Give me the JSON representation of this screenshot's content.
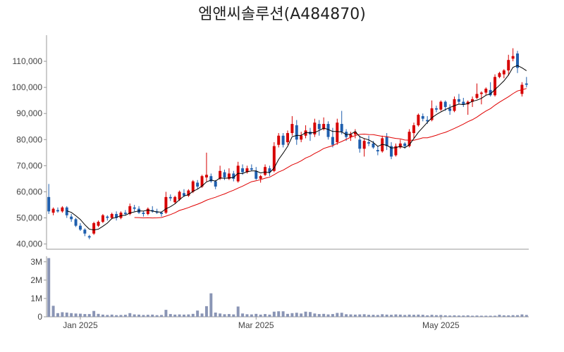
{
  "title": "엠앤씨솔루션(A484870)",
  "chart_data": {
    "type": "candlestick",
    "price_axis": {
      "ticks": [
        40000,
        50000,
        60000,
        70000,
        80000,
        90000,
        100000,
        110000
      ],
      "tick_labels": [
        "40,000",
        "50,000",
        "60,000",
        "70,000",
        "80,000",
        "90,000",
        "100,000",
        "110,000"
      ],
      "range": [
        38000,
        120000
      ]
    },
    "volume_axis": {
      "ticks": [
        0,
        1000000,
        2000000,
        3000000
      ],
      "tick_labels": [
        "0",
        "1M",
        "2M",
        "3M"
      ],
      "range": [
        0,
        3300000
      ]
    },
    "x_tick_labels": [
      {
        "index": 7,
        "label": "Jan 2025"
      },
      {
        "index": 46,
        "label": "Mar 2025"
      },
      {
        "index": 87,
        "label": "May 2025"
      }
    ],
    "colors": {
      "up": "#d60000",
      "down": "#1f5fae",
      "ma_short": "#000000",
      "ma_long": "#e00000",
      "volume": "#8a95b5"
    },
    "candles": [
      [
        58000,
        63000,
        51500,
        52500
      ],
      [
        52000,
        54000,
        51000,
        53500
      ],
      [
        53000,
        54000,
        52000,
        52500
      ],
      [
        52500,
        54500,
        52000,
        54000
      ],
      [
        54000,
        54500,
        50000,
        51000
      ],
      [
        50500,
        51500,
        48500,
        49500
      ],
      [
        49500,
        50000,
        46500,
        47000
      ],
      [
        47000,
        48000,
        45000,
        45500
      ],
      [
        45500,
        46000,
        43000,
        44000
      ],
      [
        43000,
        43500,
        41800,
        42500
      ],
      [
        44000,
        48500,
        43500,
        48000
      ],
      [
        47000,
        49000,
        46500,
        48500
      ],
      [
        48500,
        51500,
        48000,
        51000
      ],
      [
        50500,
        51000,
        49000,
        50000
      ],
      [
        50000,
        52000,
        49500,
        51500
      ],
      [
        51500,
        52500,
        49000,
        50000
      ],
      [
        50000,
        52500,
        49500,
        52000
      ],
      [
        52000,
        53000,
        51000,
        51500
      ],
      [
        51500,
        55500,
        51000,
        54500
      ],
      [
        54000,
        55000,
        52500,
        53500
      ],
      [
        53500,
        54500,
        51500,
        52000
      ],
      [
        52000,
        52500,
        50500,
        51500
      ],
      [
        51500,
        54000,
        51000,
        53500
      ],
      [
        53000,
        54500,
        52000,
        52500
      ],
      [
        52500,
        53500,
        51500,
        52000
      ],
      [
        52000,
        52500,
        50500,
        51500
      ],
      [
        52000,
        60000,
        51500,
        58000
      ],
      [
        58000,
        59000,
        56500,
        57500
      ],
      [
        56000,
        58500,
        55500,
        58000
      ],
      [
        57000,
        60500,
        56500,
        60000
      ],
      [
        59500,
        61000,
        58000,
        58500
      ],
      [
        58500,
        61000,
        58000,
        60500
      ],
      [
        60000,
        64500,
        59500,
        64000
      ],
      [
        63500,
        64500,
        61000,
        62000
      ],
      [
        62000,
        66500,
        61500,
        66000
      ],
      [
        65500,
        75000,
        64000,
        66500
      ],
      [
        66000,
        67000,
        63500,
        64000
      ],
      [
        64000,
        64500,
        61000,
        62000
      ],
      [
        65000,
        70000,
        64500,
        68000
      ],
      [
        67500,
        68500,
        64500,
        65500
      ],
      [
        65000,
        69000,
        64500,
        67000
      ],
      [
        67000,
        68000,
        64000,
        65000
      ],
      [
        64000,
        71500,
        63500,
        70000
      ],
      [
        69000,
        70500,
        66500,
        67500
      ],
      [
        67500,
        70000,
        67000,
        69000
      ],
      [
        69000,
        70500,
        68000,
        68500
      ],
      [
        68000,
        69500,
        64500,
        65000
      ],
      [
        65000,
        66500,
        63500,
        66000
      ],
      [
        66500,
        70500,
        66000,
        69500
      ],
      [
        69000,
        70000,
        66000,
        67500
      ],
      [
        68000,
        79000,
        67500,
        77500
      ],
      [
        78000,
        82500,
        77000,
        81500
      ],
      [
        81500,
        82500,
        77000,
        78000
      ],
      [
        79000,
        83500,
        78000,
        82500
      ],
      [
        82500,
        89000,
        81500,
        86000
      ],
      [
        85500,
        87500,
        78000,
        80000
      ],
      [
        80000,
        83000,
        79000,
        81500
      ],
      [
        81500,
        85500,
        80500,
        83500
      ],
      [
        83000,
        84500,
        79500,
        82000
      ],
      [
        82000,
        88000,
        81000,
        86500
      ],
      [
        86000,
        87500,
        81500,
        84000
      ],
      [
        84000,
        88500,
        83500,
        86000
      ],
      [
        86000,
        87000,
        80000,
        81000
      ],
      [
        81000,
        84500,
        77000,
        78000
      ],
      [
        79000,
        88000,
        78000,
        86500
      ],
      [
        86000,
        91000,
        82000,
        83000
      ],
      [
        83000,
        84000,
        79500,
        81000
      ],
      [
        81000,
        83000,
        79500,
        82000
      ],
      [
        82000,
        84000,
        80500,
        83000
      ],
      [
        80000,
        81500,
        75000,
        76500
      ],
      [
        76500,
        80500,
        73500,
        79500
      ],
      [
        79000,
        81500,
        77500,
        78500
      ],
      [
        78500,
        79500,
        76500,
        77000
      ],
      [
        76000,
        77500,
        74000,
        75500
      ],
      [
        75500,
        81500,
        75000,
        80500
      ],
      [
        81000,
        82500,
        76000,
        77500
      ],
      [
        77500,
        79000,
        72500,
        73500
      ],
      [
        74000,
        78500,
        73500,
        77500
      ],
      [
        77000,
        80000,
        76500,
        78500
      ],
      [
        78500,
        79000,
        76500,
        77500
      ],
      [
        77500,
        84000,
        77000,
        83000
      ],
      [
        82500,
        86500,
        80500,
        85500
      ],
      [
        85500,
        90000,
        85000,
        89500
      ],
      [
        89000,
        90000,
        87000,
        88000
      ],
      [
        87500,
        89000,
        86000,
        87000
      ],
      [
        87500,
        95000,
        87000,
        92000
      ],
      [
        92000,
        93000,
        90500,
        91500
      ],
      [
        91500,
        95000,
        91000,
        94500
      ],
      [
        94500,
        95000,
        91000,
        92500
      ],
      [
        92000,
        93500,
        89500,
        91000
      ],
      [
        91000,
        96500,
        90500,
        95500
      ],
      [
        95500,
        97500,
        93500,
        94500
      ],
      [
        94500,
        96000,
        92500,
        93500
      ],
      [
        93500,
        95000,
        89500,
        94500
      ],
      [
        94500,
        96500,
        92500,
        95500
      ],
      [
        96000,
        101500,
        95500,
        97500
      ],
      [
        97500,
        98500,
        93500,
        98000
      ],
      [
        98000,
        100000,
        97000,
        99500
      ],
      [
        99000,
        102000,
        96500,
        97000
      ],
      [
        97000,
        105000,
        96500,
        104000
      ],
      [
        104000,
        106000,
        103500,
        105500
      ],
      [
        105000,
        107000,
        103500,
        106500
      ],
      [
        106500,
        112500,
        104500,
        110500
      ],
      [
        111000,
        115000,
        110000,
        112000
      ],
      [
        113000,
        114000,
        105500,
        107500
      ],
      [
        97500,
        102000,
        96500,
        101000
      ],
      [
        101500,
        104000,
        100000,
        101000
      ]
    ],
    "volume": [
      3200000,
      600000,
      200000,
      250000,
      230000,
      200000,
      180000,
      170000,
      150000,
      150000,
      320000,
      160000,
      120000,
      100000,
      120000,
      90000,
      100000,
      110000,
      200000,
      130000,
      120000,
      100000,
      110000,
      120000,
      90000,
      100000,
      380000,
      150000,
      120000,
      130000,
      120000,
      130000,
      160000,
      340000,
      180000,
      580000,
      1280000,
      230000,
      180000,
      140000,
      150000,
      130000,
      560000,
      180000,
      140000,
      130000,
      160000,
      120000,
      150000,
      120000,
      280000,
      300000,
      300000,
      160000,
      200000,
      220000,
      180000,
      280000,
      260000,
      180000,
      150000,
      160000,
      130000,
      150000,
      210000,
      220000,
      140000,
      130000,
      120000,
      130000,
      140000,
      110000,
      110000,
      100000,
      140000,
      120000,
      110000,
      130000,
      120000,
      100000,
      120000,
      110000,
      120000,
      110000,
      80000,
      110000,
      90000,
      100000,
      80000,
      70000,
      80000,
      70000,
      70000,
      80000,
      60000,
      70000,
      60000,
      60000,
      60000,
      60000,
      110000,
      80000,
      80000,
      90000,
      90000,
      130000,
      100000
    ]
  }
}
